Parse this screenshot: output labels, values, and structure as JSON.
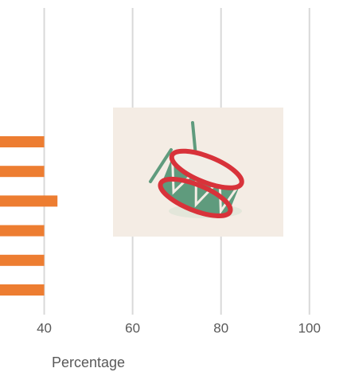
{
  "chart_data": {
    "type": "bar",
    "orientation": "horizontal",
    "x_label": "Percentage",
    "categories": [
      null,
      null,
      null,
      null,
      null,
      null
    ],
    "values": [
      40,
      40,
      43,
      40,
      40,
      40
    ],
    "color": "#ed7d31",
    "xlim": [
      30,
      108.5
    ],
    "xticks": [
      40,
      60,
      80,
      100
    ],
    "grid": true
  }
}
